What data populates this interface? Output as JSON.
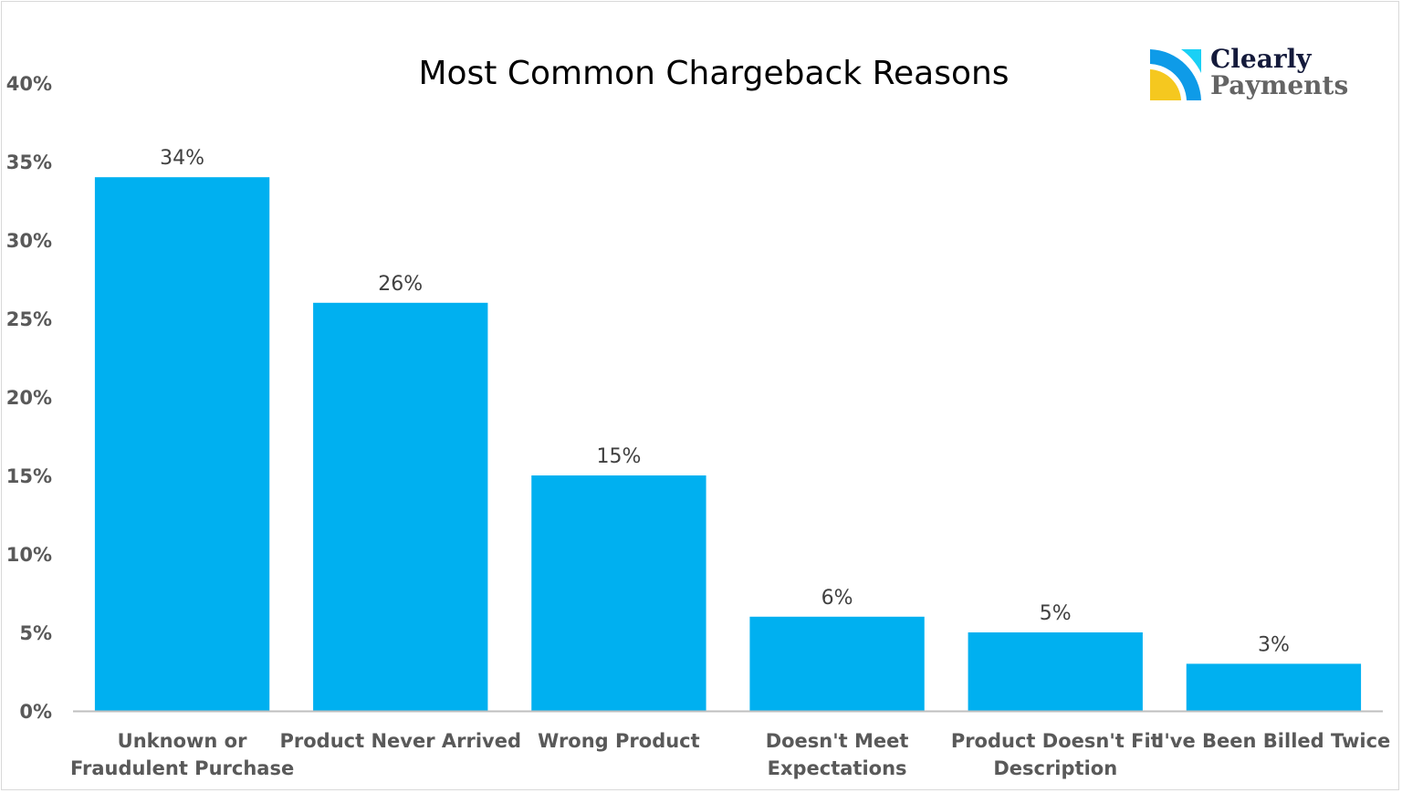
{
  "chart_data": {
    "type": "bar",
    "title": "Most Common Chargeback Reasons",
    "categories": [
      [
        "Unknown or",
        "Fraudulent Purchase"
      ],
      [
        "Product Never Arrived"
      ],
      [
        "Wrong Product"
      ],
      [
        "Doesn't Meet",
        "Expectations"
      ],
      [
        "Product Doesn't Fit",
        "Description"
      ],
      [
        "I've Been Billed Twice"
      ]
    ],
    "values": [
      34,
      26,
      15,
      6,
      5,
      3
    ],
    "data_labels": [
      "34%",
      "26%",
      "15%",
      "6%",
      "5%",
      "3%"
    ],
    "ylim": [
      0,
      40
    ],
    "yticks": [
      0,
      5,
      10,
      15,
      20,
      25,
      30,
      35,
      40
    ],
    "ytick_labels": [
      "0%",
      "5%",
      "10%",
      "15%",
      "20%",
      "25%",
      "30%",
      "35%",
      "40%"
    ],
    "xlabel": "",
    "ylabel": "",
    "grid": false,
    "legend": "none",
    "bar_color": "#00b0f0"
  },
  "logo": {
    "line1": "Clearly",
    "line2": "Payments",
    "colors": [
      "#0e9be8",
      "#1ad0f5",
      "#f5c81f"
    ]
  }
}
